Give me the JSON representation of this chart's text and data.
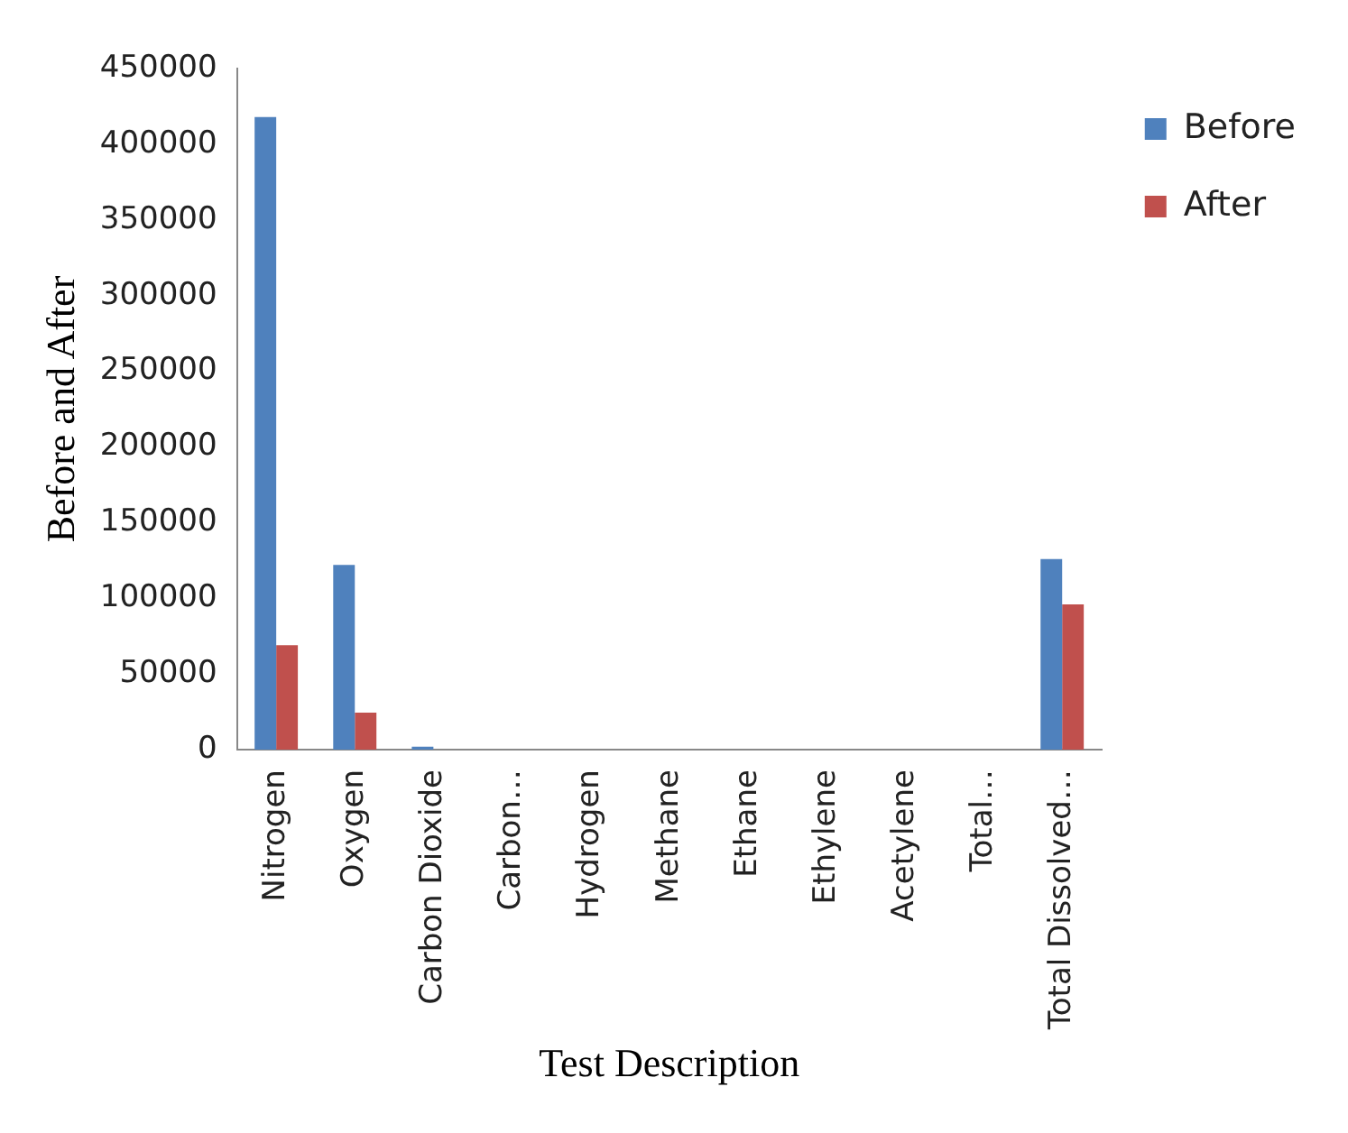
{
  "chart_data": {
    "type": "bar",
    "xlabel": "Test Description",
    "ylabel": "Before and After",
    "categories": [
      "Nitrogen",
      "Oxygen",
      "Carbon Dioxide",
      "Carbon…",
      "Hydrogen",
      "Methane",
      "Ethane",
      "Ethylene",
      "Acetylene",
      "Total…",
      "Total Dissolved…"
    ],
    "series": [
      {
        "name": "Before",
        "color": "#4f81bd",
        "values": [
          418000,
          122000,
          2000,
          0,
          0,
          0,
          0,
          0,
          0,
          0,
          126000
        ]
      },
      {
        "name": "After",
        "color": "#c0504d",
        "values": [
          69000,
          24500,
          0,
          0,
          0,
          0,
          0,
          0,
          0,
          0,
          96000
        ]
      }
    ],
    "ylim": [
      0,
      450000
    ],
    "yticks": [
      0,
      50000,
      100000,
      150000,
      200000,
      250000,
      300000,
      350000,
      400000,
      450000
    ],
    "grid": false,
    "legend": "right"
  }
}
